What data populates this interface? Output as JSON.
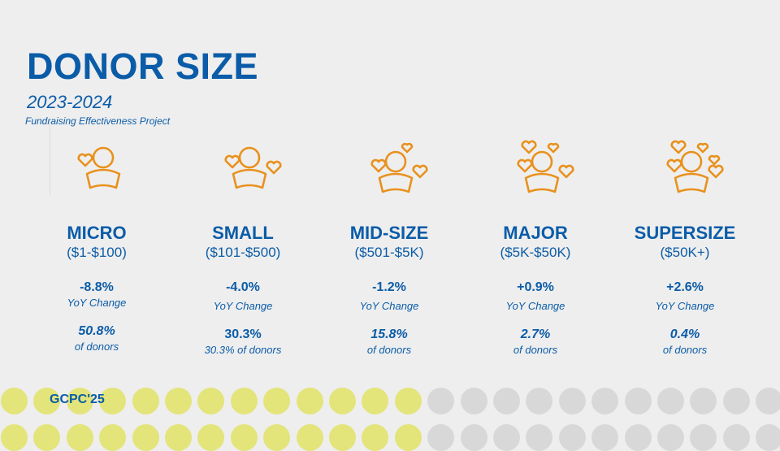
{
  "header": {
    "title": "DONOR SIZE",
    "subtitle": "2023-2024",
    "project": "Fundraising Effectiveness Project"
  },
  "colors": {
    "primary": "#0b5ca8",
    "icon": "#e8911c",
    "background": "#eeeeee",
    "dot_yellow": "#e3e47a",
    "dot_grey": "#d8d8d8"
  },
  "categories": [
    {
      "name": "MICRO",
      "range": "($1-$100)",
      "yoy": "-8.8%",
      "yoy_label": "YoY Change",
      "share": "50.8%",
      "share_label": "of donors",
      "hearts": 1,
      "icon": "person-one-heart-icon"
    },
    {
      "name": "SMALL",
      "range": "($101-$500)",
      "yoy": "-4.0%",
      "yoy_label": "YoY Change",
      "share": "30.3%",
      "share_label": "30.3% of donors",
      "hearts": 2,
      "icon": "person-two-hearts-icon"
    },
    {
      "name": "MID-SIZE",
      "range": "($501-$5K)",
      "yoy": "-1.2%",
      "yoy_label": "YoY Change",
      "share": "15.8%",
      "share_label": "of donors",
      "hearts": 3,
      "icon": "person-three-hearts-icon"
    },
    {
      "name": "MAJOR",
      "range": "($5K-$50K)",
      "yoy": "+0.9%",
      "yoy_label": "YoY Change",
      "share": "2.7%",
      "share_label": "of donors",
      "hearts": 4,
      "icon": "person-four-hearts-icon"
    },
    {
      "name": "SUPERSIZE",
      "range": "($50K+)",
      "yoy": "+2.6%",
      "yoy_label": "YoY Change",
      "share": "0.4%",
      "share_label": "of donors",
      "hearts": 5,
      "icon": "person-five-hearts-icon"
    }
  ],
  "footer": {
    "brand": "GCPC'25"
  }
}
